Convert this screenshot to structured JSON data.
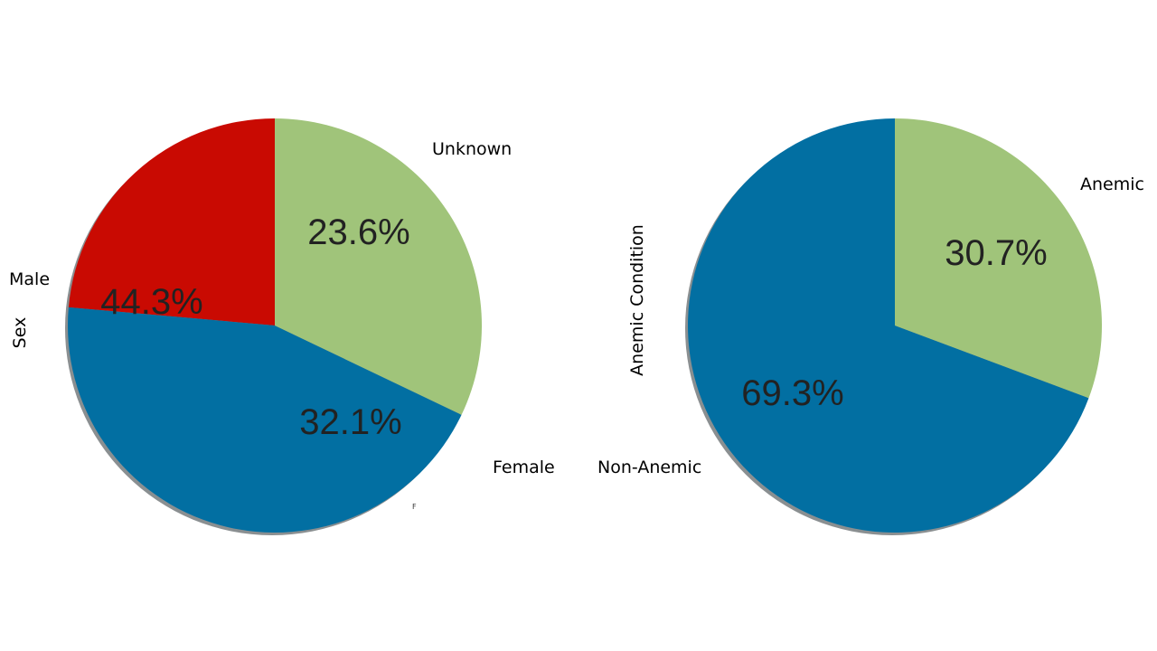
{
  "chart_data": [
    {
      "type": "pie",
      "ylabel": "Sex",
      "start_angle": 90,
      "direction": "counterclockwise",
      "shadow": true,
      "slices": [
        {
          "label": "Unknown",
          "value": 23.6,
          "pct_text": "23.6%",
          "color": "#c90a02"
        },
        {
          "label": "Male",
          "value": 44.3,
          "pct_text": "44.3%",
          "color": "#026fa2"
        },
        {
          "label": "Female",
          "value": 32.1,
          "pct_text": "32.1%",
          "color": "#a0c47a"
        }
      ],
      "stray_text": "F"
    },
    {
      "type": "pie",
      "ylabel": "Anemic Condition",
      "start_angle": 90,
      "direction": "counterclockwise",
      "shadow": true,
      "slices": [
        {
          "label": "Non-Anemic",
          "value": 69.3,
          "pct_text": "69.3%",
          "color": "#026fa2"
        },
        {
          "label": "Anemic",
          "value": 30.7,
          "pct_text": "30.7%",
          "color": "#a0c47a"
        }
      ]
    }
  ]
}
